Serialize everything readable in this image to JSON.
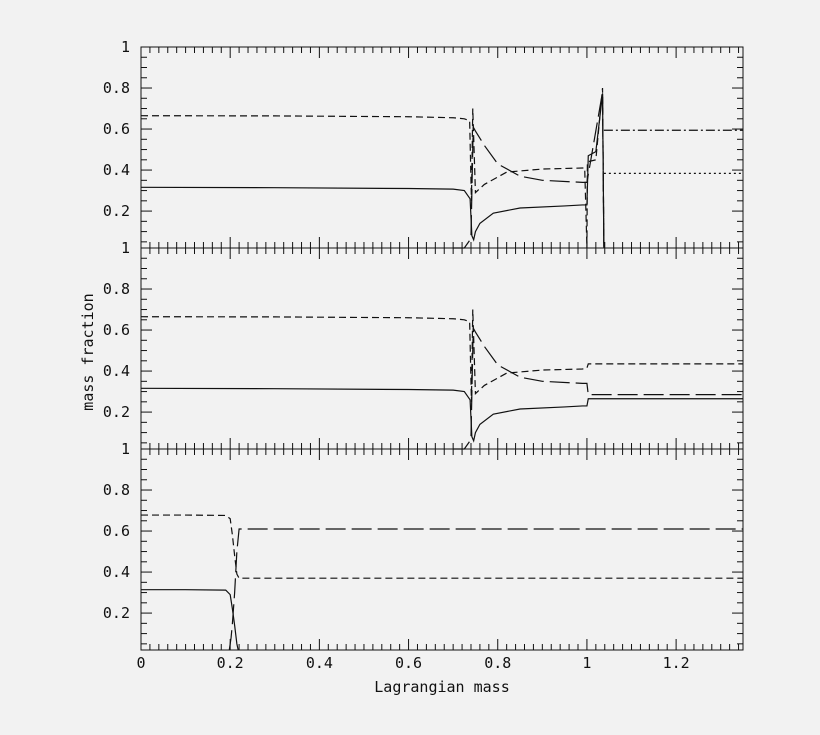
{
  "chart_data": [
    {
      "type": "line",
      "panel": "top",
      "xlim": [
        0,
        1.35
      ],
      "ylim": [
        0.02,
        1.0
      ],
      "yticks": [
        "0.2",
        "0.4",
        "0.6",
        "0.8",
        "1"
      ],
      "series": [
        {
          "style": "solid",
          "x": [
            0,
            0.3,
            0.6,
            0.7,
            0.725,
            0.738,
            0.742,
            0.746,
            0.75,
            0.76,
            0.79,
            0.85,
            0.95,
            0.99,
            1.0,
            1.003,
            1.02,
            1.035,
            1.038
          ],
          "y": [
            0.316,
            0.314,
            0.31,
            0.307,
            0.3,
            0.26,
            0.08,
            0.06,
            0.1,
            0.14,
            0.19,
            0.215,
            0.225,
            0.23,
            0.23,
            0.47,
            0.49,
            0.77,
            0.02
          ]
        },
        {
          "style": "short-dash",
          "x": [
            0,
            0.3,
            0.6,
            0.7,
            0.725,
            0.737,
            0.741,
            0.744,
            0.75,
            0.77,
            0.82,
            0.9,
            0.99,
            0.995,
            1.0,
            1.001,
            1.02,
            1.035,
            1.038
          ],
          "y": [
            0.665,
            0.664,
            0.66,
            0.655,
            0.65,
            0.64,
            0.25,
            0.7,
            0.29,
            0.33,
            0.39,
            0.405,
            0.41,
            0.41,
            0.02,
            0.44,
            0.45,
            0.8,
            0.02
          ]
        },
        {
          "style": "long-dash",
          "x": [
            0.7,
            0.725,
            0.738,
            0.74,
            0.745,
            0.75,
            0.77,
            0.8,
            0.85,
            0.9,
            0.99,
            1.0,
            1.035,
            1.038
          ],
          "y": [
            0.02,
            0.02,
            0.06,
            0.08,
            0.61,
            0.59,
            0.52,
            0.43,
            0.37,
            0.35,
            0.34,
            0.34,
            0.78,
            0.02
          ]
        },
        {
          "style": "dot-dash",
          "x": [
            1.038,
            1.35
          ],
          "y": [
            0.594,
            0.594
          ]
        },
        {
          "style": "dotted",
          "x": [
            1.038,
            1.35
          ],
          "y": [
            0.384,
            0.384
          ]
        }
      ]
    },
    {
      "type": "line",
      "panel": "middle",
      "xlim": [
        0,
        1.35
      ],
      "ylim": [
        0.02,
        1.0
      ],
      "yticks": [
        "0.2",
        "0.4",
        "0.6",
        "0.8",
        "1"
      ],
      "ylabel": "mass fraction",
      "series": [
        {
          "style": "solid",
          "x": [
            0,
            0.3,
            0.6,
            0.7,
            0.725,
            0.738,
            0.742,
            0.746,
            0.75,
            0.76,
            0.79,
            0.85,
            0.95,
            0.99,
            1.0,
            1.003,
            1.35
          ],
          "y": [
            0.316,
            0.314,
            0.31,
            0.307,
            0.3,
            0.26,
            0.08,
            0.06,
            0.1,
            0.14,
            0.19,
            0.215,
            0.225,
            0.23,
            0.23,
            0.265,
            0.265
          ]
        },
        {
          "style": "short-dash",
          "x": [
            0,
            0.3,
            0.6,
            0.7,
            0.725,
            0.737,
            0.741,
            0.744,
            0.75,
            0.77,
            0.82,
            0.9,
            0.99,
            1.0,
            1.003,
            1.35
          ],
          "y": [
            0.665,
            0.664,
            0.66,
            0.655,
            0.65,
            0.64,
            0.25,
            0.7,
            0.29,
            0.33,
            0.39,
            0.405,
            0.41,
            0.415,
            0.435,
            0.435
          ]
        },
        {
          "style": "long-dash",
          "x": [
            0.7,
            0.725,
            0.738,
            0.74,
            0.745,
            0.75,
            0.77,
            0.8,
            0.85,
            0.9,
            0.99,
            1.0,
            1.003,
            1.35
          ],
          "y": [
            0.02,
            0.02,
            0.06,
            0.08,
            0.61,
            0.59,
            0.52,
            0.43,
            0.37,
            0.35,
            0.34,
            0.34,
            0.285,
            0.285
          ]
        }
      ]
    },
    {
      "type": "line",
      "panel": "bottom",
      "xlim": [
        0,
        1.35
      ],
      "ylim": [
        0.02,
        1.0
      ],
      "yticks": [
        "0.2",
        "0.4",
        "0.6",
        "0.8",
        "1"
      ],
      "xticks": [
        "0",
        "0.2",
        "0.4",
        "0.6",
        "0.8",
        "1",
        "1.2"
      ],
      "xlabel": "Lagrangian mass",
      "series": [
        {
          "style": "solid",
          "x": [
            0,
            0.1,
            0.19,
            0.2,
            0.205,
            0.21,
            0.215,
            0.218
          ],
          "y": [
            0.314,
            0.314,
            0.312,
            0.29,
            0.22,
            0.14,
            0.05,
            0.02
          ]
        },
        {
          "style": "short-dash",
          "x": [
            0,
            0.1,
            0.19,
            0.2,
            0.205,
            0.21,
            0.215,
            0.22,
            1.35
          ],
          "y": [
            0.678,
            0.678,
            0.676,
            0.66,
            0.58,
            0.48,
            0.39,
            0.37,
            0.37
          ]
        },
        {
          "style": "long-dash",
          "x": [
            0.198,
            0.202,
            0.205,
            0.21,
            0.215,
            0.22,
            1.35
          ],
          "y": [
            0.02,
            0.08,
            0.15,
            0.3,
            0.5,
            0.61,
            0.61
          ]
        }
      ]
    }
  ]
}
